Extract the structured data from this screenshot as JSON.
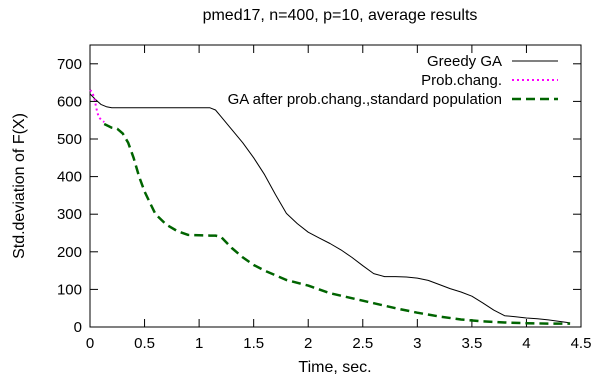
{
  "chart_data": {
    "type": "line",
    "title": "pmed17, n=400, p=10, average results",
    "xlabel": "Time, sec.",
    "ylabel": "Std.deviation of F(X)",
    "xlim": [
      0,
      4.5
    ],
    "ylim": [
      0,
      750
    ],
    "xticks": [
      "0",
      "0.5",
      "1",
      "1.5",
      "2",
      "2.5",
      "3",
      "3.5",
      "4",
      "4.5"
    ],
    "yticks": [
      "0",
      "100",
      "200",
      "300",
      "400",
      "500",
      "600",
      "700"
    ],
    "grid": false,
    "legend_position": "top-right",
    "series": [
      {
        "name": "Greedy GA",
        "color": "#000000",
        "style": "solid",
        "x": [
          0.0,
          0.05,
          0.1,
          0.15,
          0.2,
          0.5,
          0.8,
          1.1,
          1.15,
          1.2,
          1.3,
          1.4,
          1.5,
          1.6,
          1.7,
          1.8,
          1.9,
          2.0,
          2.1,
          2.2,
          2.3,
          2.4,
          2.5,
          2.6,
          2.7,
          2.8,
          2.9,
          3.0,
          3.1,
          3.2,
          3.3,
          3.4,
          3.5,
          3.6,
          3.7,
          3.8,
          3.9,
          4.0,
          4.1,
          4.2,
          4.3,
          4.4
        ],
        "y": [
          620,
          605,
          592,
          586,
          583,
          583,
          583,
          583,
          577,
          560,
          525,
          490,
          450,
          405,
          352,
          302,
          275,
          252,
          237,
          222,
          205,
          185,
          163,
          142,
          134,
          134,
          133,
          130,
          124,
          113,
          102,
          93,
          82,
          64,
          45,
          30,
          27,
          24,
          22,
          19,
          15,
          11
        ]
      },
      {
        "name": "Prob.chang.",
        "color": "#ff00ff",
        "style": "dotted",
        "x": [
          0.0,
          0.02,
          0.04,
          0.06,
          0.08,
          0.1,
          0.13
        ],
        "y": [
          630,
          625,
          608,
          580,
          558,
          552,
          545
        ]
      },
      {
        "name": "GA after prob.chang.,standard population",
        "color": "#006400",
        "style": "dashed",
        "x": [
          0.13,
          0.2,
          0.25,
          0.3,
          0.35,
          0.4,
          0.45,
          0.5,
          0.55,
          0.6,
          0.7,
          0.8,
          0.9,
          1.0,
          1.1,
          1.15,
          1.2,
          1.3,
          1.4,
          1.5,
          1.6,
          1.8,
          2.0,
          2.2,
          2.5,
          2.8,
          3.0,
          3.2,
          3.4,
          3.6,
          3.8,
          4.0,
          4.2,
          4.4
        ],
        "y": [
          540,
          530,
          527,
          515,
          490,
          450,
          400,
          360,
          330,
          300,
          272,
          255,
          245,
          244,
          243,
          243,
          240,
          210,
          185,
          165,
          150,
          125,
          110,
          90,
          70,
          50,
          38,
          28,
          20,
          15,
          12,
          10,
          9,
          9
        ]
      }
    ]
  }
}
